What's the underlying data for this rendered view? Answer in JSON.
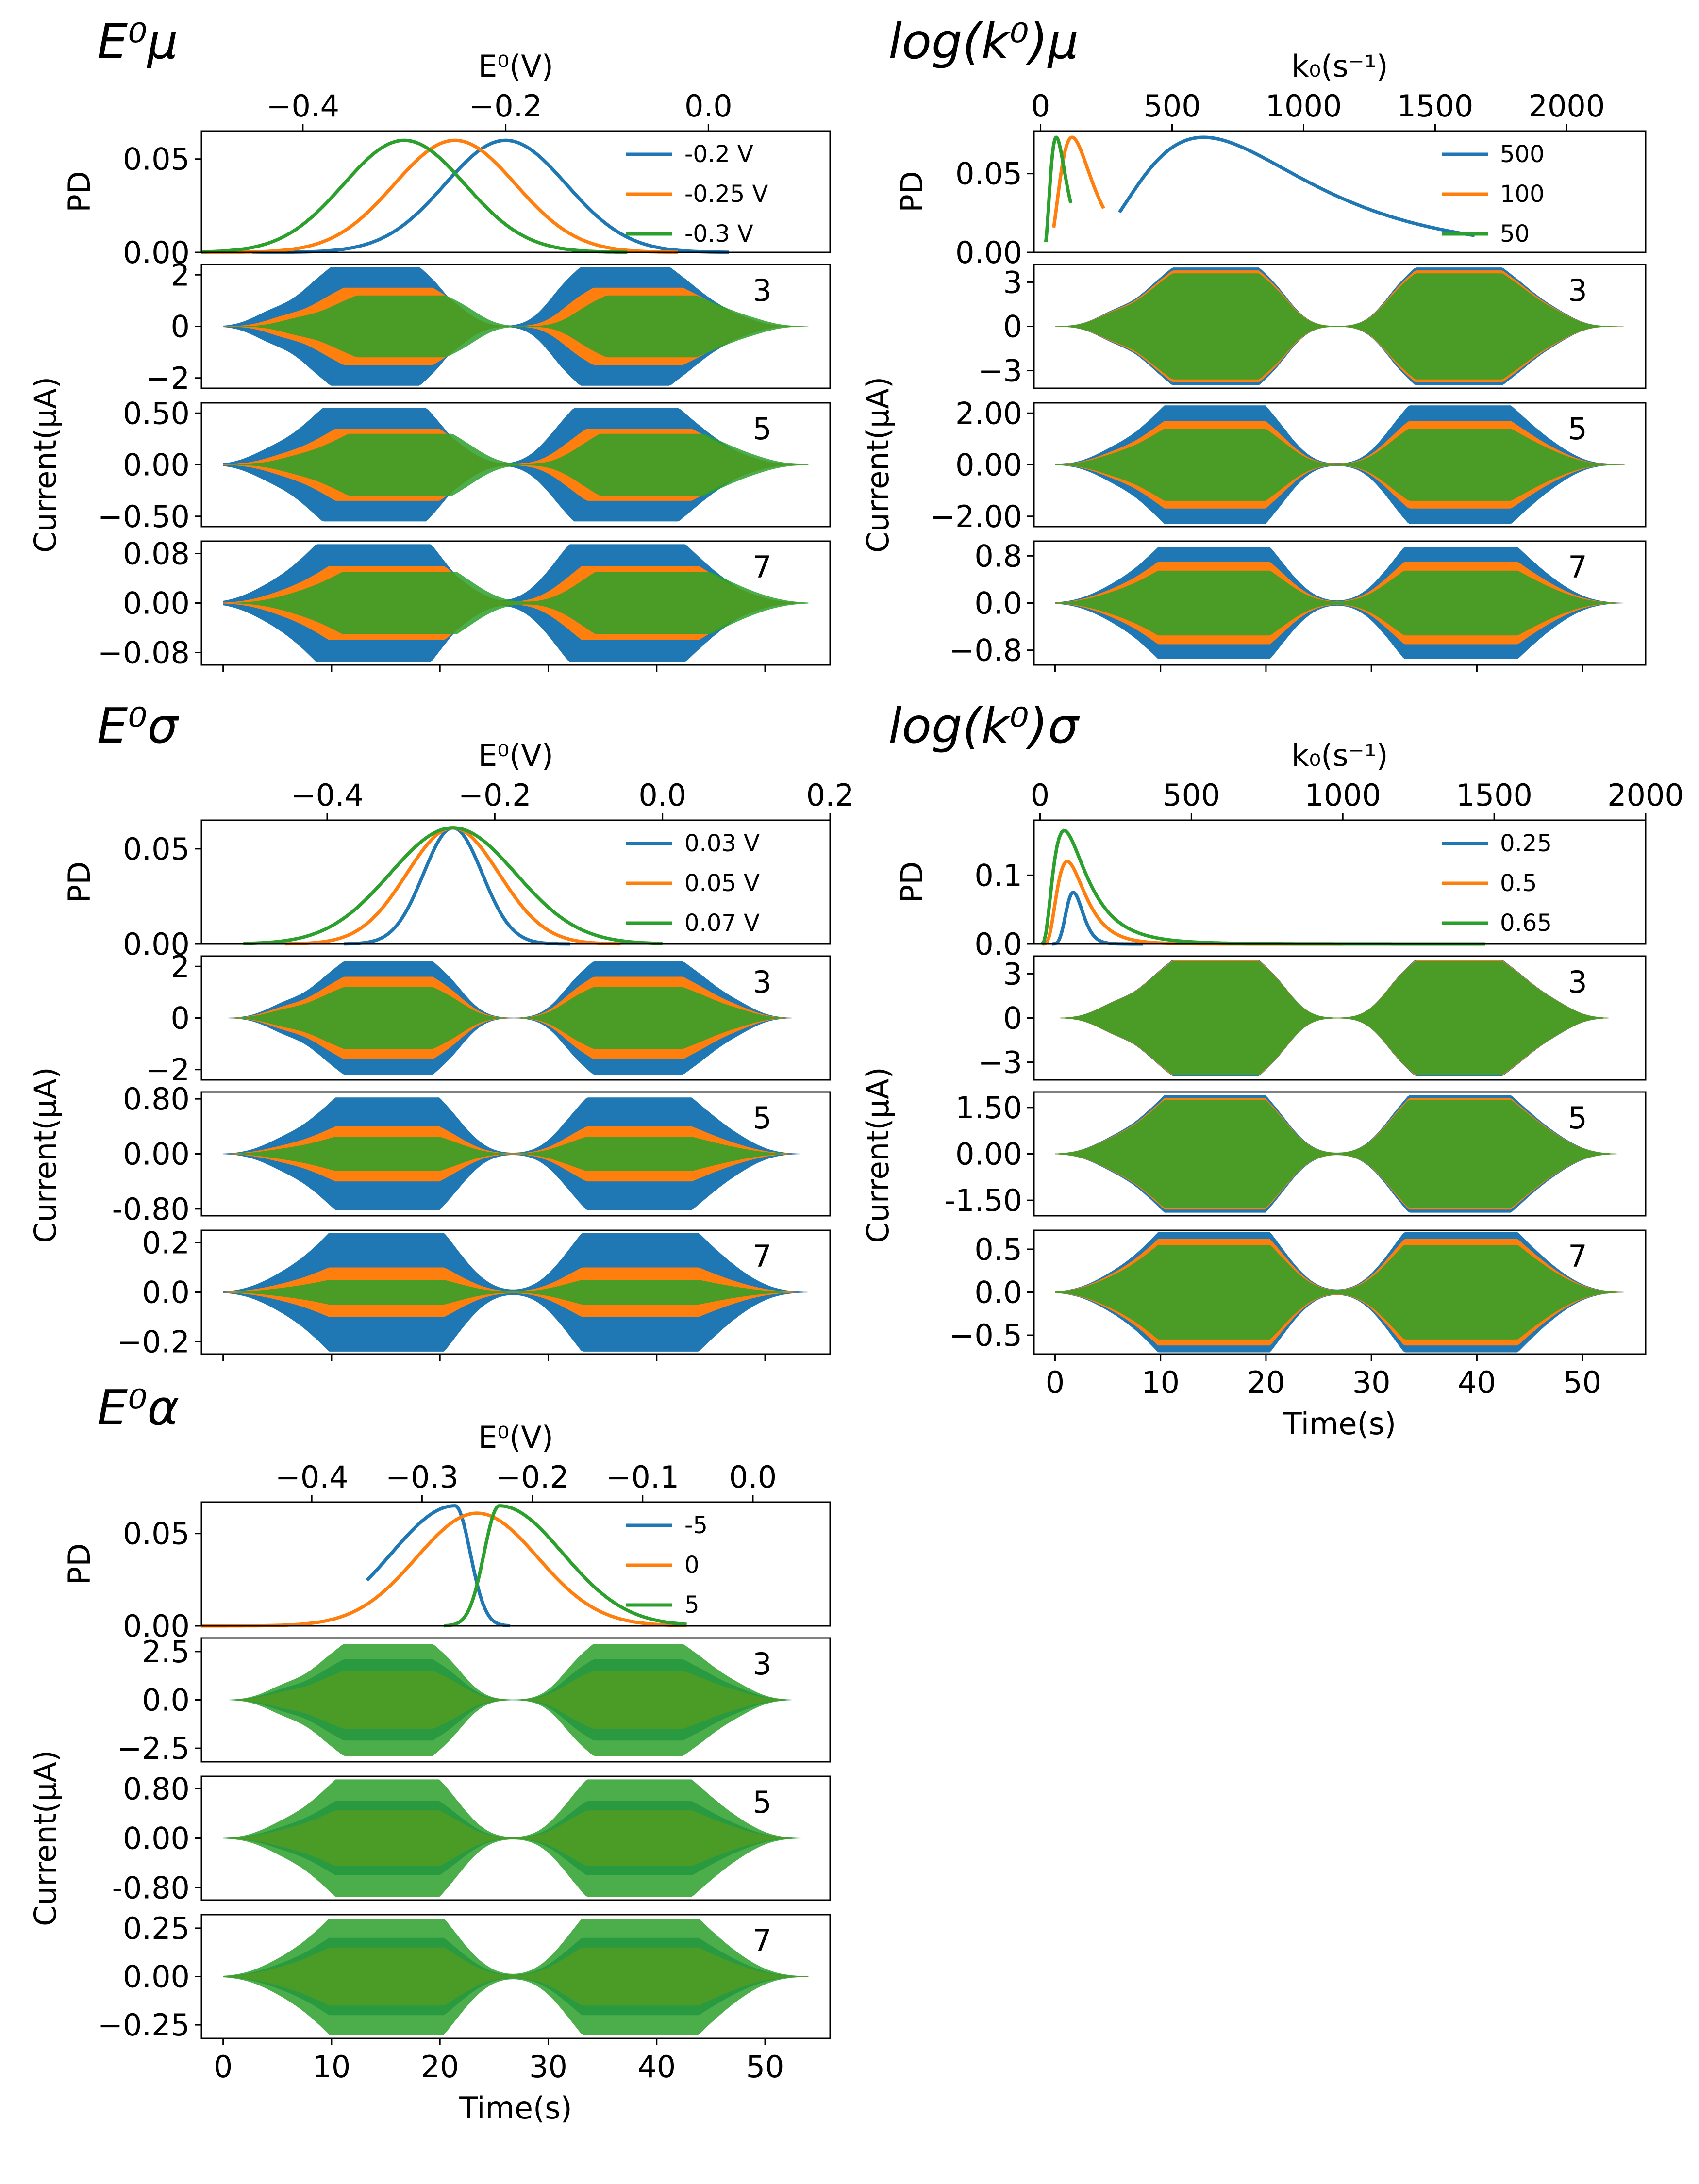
{
  "chart_data": [
    {
      "type": "line",
      "id": "E0mu",
      "title": "E⁰μ",
      "pd": {
        "xlabel": "E⁰(V)",
        "ylabel": "PD",
        "xlim": [
          -0.5,
          0.12
        ],
        "ylim": [
          0,
          0.065
        ],
        "xticks": [
          -0.4,
          -0.2,
          0.0
        ],
        "xtick_labels": [
          "−0.4",
          "−0.2",
          "0.0"
        ],
        "yticks": [
          0,
          0.05
        ],
        "ytick_labels": [
          "0.00",
          "0.05"
        ],
        "legend_position": "right",
        "series": [
          {
            "name": "-0.2 V",
            "color": "#1f77b4",
            "dist": "normal",
            "mu": -0.2,
            "sigma": 0.06,
            "peak": 0.06,
            "xrange": [
              -0.45,
              0.02
            ]
          },
          {
            "name": "-0.25 V",
            "color": "#ff7f0e",
            "dist": "normal",
            "mu": -0.25,
            "sigma": 0.06,
            "peak": 0.06,
            "xrange": [
              -0.5,
              -0.03
            ]
          },
          {
            "name": "-0.3 V",
            "color": "#2ca02c",
            "dist": "normal",
            "mu": -0.3,
            "sigma": 0.06,
            "peak": 0.06,
            "xrange": [
              -0.5,
              -0.08
            ]
          }
        ]
      },
      "currents": [
        {
          "harmonic": "3",
          "ylim": [
            -2.4,
            2.4
          ],
          "yticks": [
            -2,
            0,
            2
          ],
          "ytick_labels": [
            "−2",
            "0",
            "2"
          ],
          "amplitudes": [
            2.3,
            1.5,
            1.2
          ]
        },
        {
          "harmonic": "5",
          "ylim": [
            -0.6,
            0.6
          ],
          "yticks": [
            -0.5,
            0,
            0.5
          ],
          "ytick_labels": [
            "−0.50",
            "0.00",
            "0.50"
          ],
          "amplitudes": [
            0.55,
            0.35,
            0.3
          ]
        },
        {
          "harmonic": "7",
          "ylim": [
            -0.1,
            0.1
          ],
          "yticks": [
            -0.08,
            0,
            0.08
          ],
          "ytick_labels": [
            "−0.08",
            "0.00",
            "0.08"
          ],
          "amplitudes": [
            0.095,
            0.06,
            0.05
          ]
        }
      ],
      "current_ylabel": "Current(μA)",
      "time_xlabel": "",
      "time_tick_labels": []
    },
    {
      "type": "line",
      "id": "logk0mu",
      "title": "log(k⁰)μ",
      "pd": {
        "xlabel": "k₀(s⁻¹)",
        "ylabel": "PD",
        "xlim": [
          -25,
          2300
        ],
        "ylim": [
          0,
          0.077
        ],
        "xticks": [
          0,
          500,
          1000,
          1500,
          2000
        ],
        "xtick_labels": [
          "0",
          "500",
          "1000",
          "1500",
          "2000"
        ],
        "yticks": [
          0,
          0.05
        ],
        "ytick_labels": [
          "0.00",
          "0.05"
        ],
        "legend_position": "right",
        "series": [
          {
            "name": "500",
            "color": "#1f77b4",
            "dist": "lognormal",
            "mu": 620,
            "sigma": 0.5,
            "peak": 0.073,
            "xrange": [
              300,
              1650
            ]
          },
          {
            "name": "100",
            "color": "#ff7f0e",
            "dist": "lognormal",
            "mu": 120,
            "sigma": 0.5,
            "peak": 0.073,
            "xrange": [
              50,
              240
            ]
          },
          {
            "name": "50",
            "color": "#2ca02c",
            "dist": "lognormal",
            "mu": 60,
            "sigma": 0.5,
            "peak": 0.073,
            "xrange": [
              20,
              115
            ]
          }
        ]
      },
      "currents": [
        {
          "harmonic": "3",
          "ylim": [
            -4.2,
            4.2
          ],
          "yticks": [
            -3,
            0,
            3
          ],
          "ytick_labels": [
            "−3",
            "0",
            "3"
          ],
          "amplitudes": [
            4.0,
            3.8,
            3.6
          ]
        },
        {
          "harmonic": "5",
          "ylim": [
            -2.4,
            2.4
          ],
          "yticks": [
            -2,
            0,
            2
          ],
          "ytick_labels": [
            "−2.00",
            "0.00",
            "2.00"
          ],
          "amplitudes": [
            2.3,
            1.7,
            1.4
          ]
        },
        {
          "harmonic": "7",
          "ylim": [
            -1.05,
            1.05
          ],
          "yticks": [
            -0.8,
            0,
            0.8
          ],
          "ytick_labels": [
            "−0.8",
            "0.0",
            "0.8"
          ],
          "amplitudes": [
            0.95,
            0.7,
            0.55
          ]
        }
      ],
      "current_ylabel": "Current(μA)",
      "time_xlabel": "",
      "time_tick_labels": []
    },
    {
      "type": "line",
      "id": "E0sigma",
      "title": "E⁰σ",
      "pd": {
        "xlabel": "E⁰(V)",
        "ylabel": "PD",
        "xlim": [
          -0.55,
          0.2
        ],
        "ylim": [
          0,
          0.065
        ],
        "xticks": [
          -0.4,
          -0.2,
          0.0,
          0.2
        ],
        "xtick_labels": [
          "−0.4",
          "−0.2",
          "0.0",
          "0.2"
        ],
        "yticks": [
          0,
          0.05
        ],
        "ytick_labels": [
          "0.00",
          "0.05"
        ],
        "legend_position": "right",
        "series": [
          {
            "name": "0.03 V",
            "color": "#1f77b4",
            "dist": "normal",
            "mu": -0.25,
            "sigma": 0.035,
            "peak": 0.061,
            "xrange": [
              -0.38,
              -0.11
            ]
          },
          {
            "name": "0.05 V",
            "color": "#ff7f0e",
            "dist": "normal",
            "mu": -0.25,
            "sigma": 0.055,
            "peak": 0.061,
            "xrange": [
              -0.45,
              -0.05
            ]
          },
          {
            "name": "0.07 V",
            "color": "#2ca02c",
            "dist": "normal",
            "mu": -0.25,
            "sigma": 0.075,
            "peak": 0.061,
            "xrange": [
              -0.5,
              0.0
            ]
          }
        ]
      },
      "currents": [
        {
          "harmonic": "3",
          "ylim": [
            -2.4,
            2.4
          ],
          "yticks": [
            -2,
            0,
            2
          ],
          "ytick_labels": [
            "−2",
            "0",
            "2"
          ],
          "amplitudes": [
            2.2,
            1.6,
            1.2
          ]
        },
        {
          "harmonic": "5",
          "ylim": [
            -0.9,
            0.9
          ],
          "yticks": [
            -0.8,
            0,
            0.8
          ],
          "ytick_labels": [
            "-0.80",
            "0.00",
            "0.80"
          ],
          "amplitudes": [
            0.82,
            0.4,
            0.25
          ]
        },
        {
          "harmonic": "7",
          "ylim": [
            -0.25,
            0.25
          ],
          "yticks": [
            -0.2,
            0,
            0.2
          ],
          "ytick_labels": [
            "−0.2",
            "0.0",
            "0.2"
          ],
          "amplitudes": [
            0.24,
            0.1,
            0.05
          ]
        }
      ],
      "current_ylabel": "Current(μA)",
      "time_xlabel": "",
      "time_tick_labels": []
    },
    {
      "type": "line",
      "id": "logk0sigma",
      "title": "log(k⁰)σ",
      "pd": {
        "xlabel": "k₀(s⁻¹)",
        "ylabel": "PD",
        "xlim": [
          -20,
          2000
        ],
        "ylim": [
          0,
          0.18
        ],
        "xticks": [
          0,
          500,
          1000,
          1500,
          2000
        ],
        "xtick_labels": [
          "0",
          "500",
          "1000",
          "1500",
          "2000"
        ],
        "yticks": [
          0,
          0.1
        ],
        "ytick_labels": [
          "0.0",
          "0.1"
        ],
        "legend_position": "right",
        "series": [
          {
            "name": "0.25",
            "color": "#1f77b4",
            "dist": "lognormal",
            "mu": 110,
            "sigma": 0.25,
            "peak": 0.075,
            "xrange": [
              40,
              340
            ]
          },
          {
            "name": "0.5",
            "color": "#ff7f0e",
            "dist": "lognormal",
            "mu": 90,
            "sigma": 0.5,
            "peak": 0.12,
            "xrange": [
              10,
              1000
            ]
          },
          {
            "name": "0.65",
            "color": "#2ca02c",
            "dist": "lognormal",
            "mu": 80,
            "sigma": 0.65,
            "peak": 0.165,
            "xrange": [
              5,
              1470
            ]
          }
        ]
      },
      "currents": [
        {
          "harmonic": "3",
          "ylim": [
            -4.2,
            4.2
          ],
          "yticks": [
            -3,
            0,
            3
          ],
          "ytick_labels": [
            "−3",
            "0",
            "3"
          ],
          "amplitudes": [
            3.95,
            3.9,
            3.85
          ]
        },
        {
          "harmonic": "5",
          "ylim": [
            -2.0,
            2.0
          ],
          "yticks": [
            -1.5,
            0,
            1.5
          ],
          "ytick_labels": [
            "-1.50",
            "0.00",
            "1.50"
          ],
          "amplitudes": [
            1.9,
            1.8,
            1.75
          ]
        },
        {
          "harmonic": "7",
          "ylim": [
            -0.72,
            0.72
          ],
          "yticks": [
            -0.5,
            0,
            0.5
          ],
          "ytick_labels": [
            "−0.5",
            "0.0",
            "0.5"
          ],
          "amplitudes": [
            0.7,
            0.62,
            0.55
          ]
        }
      ],
      "current_ylabel": "Current(μA)",
      "time_xlabel": "Time(s)",
      "time_tick_labels": [
        "0",
        "10",
        "20",
        "30",
        "40",
        "50"
      ]
    },
    {
      "type": "line",
      "id": "E0alpha",
      "title": "E⁰α",
      "pd": {
        "xlabel": "E⁰(V)",
        "ylabel": "PD",
        "xlim": [
          -0.5,
          0.07
        ],
        "ylim": [
          0,
          0.067
        ],
        "xticks": [
          -0.4,
          -0.3,
          -0.2,
          -0.1,
          0.0
        ],
        "xtick_labels": [
          "−0.4",
          "−0.3",
          "−0.2",
          "−0.1",
          "0.0"
        ],
        "yticks": [
          0,
          0.05
        ],
        "ytick_labels": [
          "0.00",
          "0.05"
        ],
        "legend_position": "right",
        "series": [
          {
            "name": "-5",
            "color": "#1f77b4",
            "dist": "skewleft",
            "mu": -0.27,
            "sigma": 0.025,
            "peak": 0.065,
            "xrange": [
              -0.35,
              -0.22
            ]
          },
          {
            "name": "0",
            "color": "#ff7f0e",
            "dist": "normal",
            "mu": -0.25,
            "sigma": 0.055,
            "peak": 0.061,
            "xrange": [
              -0.5,
              -0.06
            ]
          },
          {
            "name": "5",
            "color": "#2ca02c",
            "dist": "skewright",
            "mu": -0.23,
            "sigma": 0.025,
            "peak": 0.065,
            "xrange": [
              -0.28,
              -0.06
            ]
          }
        ]
      },
      "currents": [
        {
          "harmonic": "3",
          "ylim": [
            -3.2,
            3.2
          ],
          "yticks": [
            -2.5,
            0,
            2.5
          ],
          "ytick_labels": [
            "−2.5",
            "0.0",
            "2.5"
          ],
          "amplitudes": [
            2.1,
            1.5,
            2.9
          ]
        },
        {
          "harmonic": "5",
          "ylim": [
            -1.0,
            1.0
          ],
          "yticks": [
            -0.8,
            0,
            0.8
          ],
          "ytick_labels": [
            "-0.80",
            "0.00",
            "0.80"
          ],
          "amplitudes": [
            0.6,
            0.45,
            0.95
          ]
        },
        {
          "harmonic": "7",
          "ylim": [
            -0.32,
            0.32
          ],
          "yticks": [
            -0.25,
            0,
            0.25
          ],
          "ytick_labels": [
            "−0.25",
            "0.00",
            "0.25"
          ],
          "amplitudes": [
            0.2,
            0.15,
            0.3
          ]
        }
      ],
      "current_ylabel": "Current(μA)",
      "time_xlabel": "Time(s)",
      "time_tick_labels": [
        "0",
        "10",
        "20",
        "30",
        "40",
        "50"
      ]
    }
  ],
  "time_axis": {
    "xlim": [
      -2,
      56
    ],
    "xticks": [
      0,
      10,
      20,
      30,
      40,
      50
    ]
  }
}
